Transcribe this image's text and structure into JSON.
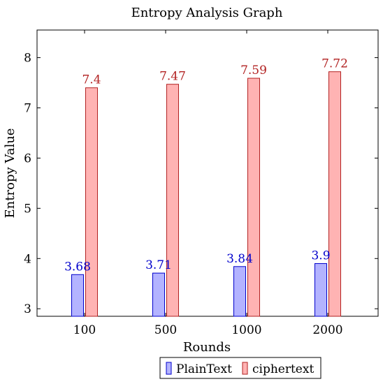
{
  "chart_data": {
    "type": "bar",
    "title": "Entropy Analysis Graph",
    "xlabel": "Rounds",
    "ylabel": "Entropy Value",
    "categories": [
      "100",
      "500",
      "1000",
      "2000"
    ],
    "ylim": [
      2.85,
      8.55
    ],
    "yticks": [
      3,
      4,
      5,
      6,
      7,
      8
    ],
    "grid": false,
    "legend_position": "bottom",
    "series": [
      {
        "name": "PlainText",
        "values": [
          3.68,
          3.71,
          3.84,
          3.9
        ],
        "labels": [
          "3.68",
          "3.71",
          "3.84",
          "3.9"
        ],
        "fill": "#b3b3ff",
        "stroke": "#0000cc",
        "label_color": "#0000cc"
      },
      {
        "name": "ciphertext",
        "values": [
          7.4,
          7.47,
          7.59,
          7.72
        ],
        "labels": [
          "7.4",
          "7.47",
          "7.59",
          "7.72"
        ],
        "fill": "#ffb3b3",
        "stroke": "#b22222",
        "label_color": "#b22222"
      }
    ]
  }
}
